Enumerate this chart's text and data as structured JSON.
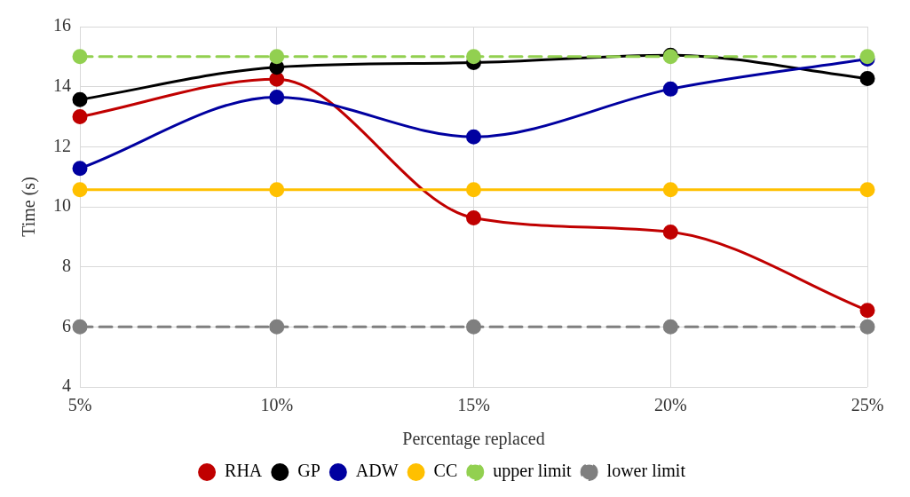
{
  "chart_data": {
    "type": "line",
    "xlabel": "Percentage replaced",
    "ylabel": "Time (s)",
    "categories": [
      "5%",
      "10%",
      "15%",
      "20%",
      "25%"
    ],
    "ylim": [
      4,
      16
    ],
    "yticks": [
      4,
      6,
      8,
      10,
      12,
      14,
      16
    ],
    "grid": true,
    "legend": "bottom",
    "marker": "circle",
    "series": [
      {
        "name": "RHA",
        "color": "#c00000",
        "values": [
          13.0,
          14.25,
          9.63,
          9.16,
          6.55
        ]
      },
      {
        "name": "GP",
        "color": "#000000",
        "values": [
          13.57,
          14.65,
          14.8,
          15.05,
          14.27
        ]
      },
      {
        "name": "ADW",
        "color": "#0000a0",
        "values": [
          11.28,
          13.65,
          12.33,
          13.92,
          14.92
        ]
      },
      {
        "name": "CC",
        "color": "#ffc000",
        "values": [
          10.57,
          10.57,
          10.57,
          10.57,
          10.57
        ]
      },
      {
        "name": "upper limit",
        "color": "#92d050",
        "line_style": "dashed",
        "values": [
          15,
          15,
          15,
          15,
          15
        ]
      },
      {
        "name": "lower limit",
        "color": "#7f7f7f",
        "line_style": "dashed",
        "values": [
          6,
          6,
          6,
          6,
          6
        ]
      }
    ]
  }
}
